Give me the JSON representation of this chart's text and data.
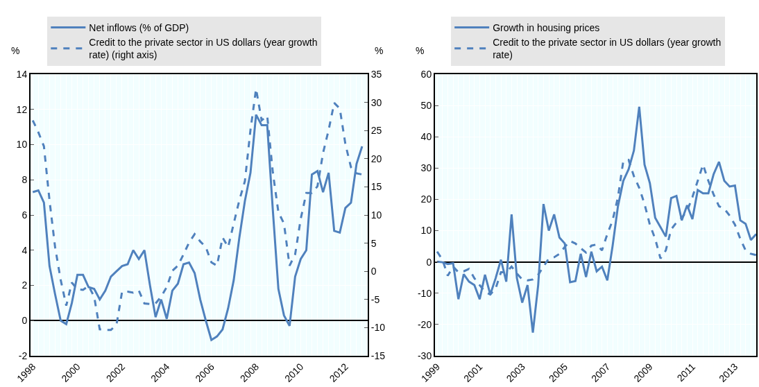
{
  "chart_data": [
    {
      "type": "line",
      "ylabel": "%",
      "y2label": "%",
      "x": [
        1998,
        1998.25,
        1998.5,
        1998.75,
        1999,
        1999.25,
        1999.5,
        1999.75,
        2000,
        2000.25,
        2000.5,
        2000.75,
        2001,
        2001.25,
        2001.5,
        2001.75,
        2002,
        2002.25,
        2002.5,
        2002.75,
        2003,
        2003.25,
        2003.5,
        2003.75,
        2004,
        2004.25,
        2004.5,
        2004.75,
        2005,
        2005.25,
        2005.5,
        2005.75,
        2006,
        2006.25,
        2006.5,
        2006.75,
        2007,
        2007.25,
        2007.5,
        2007.75,
        2008,
        2008.25,
        2008.5,
        2008.75,
        2009,
        2009.25,
        2009.5,
        2009.75,
        2010,
        2010.25,
        2010.5,
        2010.75,
        2011,
        2011.25,
        2011.5,
        2011.75,
        2012,
        2012.25,
        2012.5,
        2012.75
      ],
      "series": [
        {
          "name": "Net inflows (% of GDP)",
          "color": "#4f81bd",
          "line_style": "solid",
          "values": [
            7.3,
            7.4,
            6.7,
            3.1,
            1.5,
            0.0,
            -0.2,
            1.0,
            2.6,
            2.6,
            1.9,
            1.8,
            1.2,
            1.7,
            2.5,
            2.8,
            3.1,
            3.2,
            4.0,
            3.5,
            4.0,
            2.0,
            0.2,
            1.2,
            0.1,
            1.7,
            2.1,
            3.2,
            3.3,
            2.7,
            1.2,
            0.0,
            -1.1,
            -0.9,
            -0.5,
            0.7,
            2.3,
            4.7,
            6.8,
            8.4,
            11.7,
            11.1,
            11.1,
            6.3,
            1.8,
            0.3,
            -0.3,
            2.5,
            3.5,
            4.0,
            8.3,
            8.5,
            7.3,
            8.4,
            5.1,
            5.0,
            6.4,
            6.7,
            8.9,
            9.9
          ]
        },
        {
          "name": "Credit to the private sector in US dollars (year growth rate) (right axis)",
          "color": "#4f81bd",
          "line_style": "dashed",
          "axis": "y2",
          "values": [
            26.8,
            24.7,
            22.2,
            12.6,
            4.3,
            -1.5,
            -6.1,
            -2.0,
            -3.2,
            -3.3,
            -2.6,
            -4.5,
            -10.3,
            -10.4,
            -10.4,
            -9.5,
            -3.6,
            -3.6,
            -3.8,
            -3.4,
            -5.7,
            -5.8,
            -5.7,
            -4.5,
            -2.8,
            0.1,
            1.0,
            3.0,
            5.1,
            6.6,
            5.3,
            4.3,
            1.6,
            1.0,
            6.0,
            4.3,
            8.5,
            12.6,
            16.0,
            25.1,
            32.4,
            26.8,
            27.6,
            17.6,
            10.5,
            8.5,
            1.0,
            3.0,
            9.3,
            13.9,
            13.9,
            15.1,
            21.0,
            25.1,
            29.9,
            28.9,
            22.6,
            18.5,
            17.4,
            17.2
          ]
        }
      ],
      "xlim": [
        1997.9,
        2013.0
      ],
      "xticks": [
        1998,
        2000,
        2002,
        2004,
        2006,
        2008,
        2010,
        2012
      ],
      "ylim": [
        -2,
        14
      ],
      "yticks": [
        -2,
        0,
        2,
        4,
        6,
        8,
        10,
        12,
        14
      ],
      "y2lim": [
        -15,
        35
      ],
      "y2ticks": [
        -15,
        -10,
        -5,
        0,
        5,
        10,
        15,
        20,
        25,
        30,
        35
      ],
      "grid": true,
      "legend": "top"
    },
    {
      "type": "line",
      "ylabel": "%",
      "x": [
        1999,
        1999.25,
        1999.5,
        1999.75,
        2000,
        2000.25,
        2000.5,
        2000.75,
        2001,
        2001.25,
        2001.5,
        2001.75,
        2002,
        2002.25,
        2002.5,
        2002.75,
        2003,
        2003.25,
        2003.5,
        2003.75,
        2004,
        2004.25,
        2004.5,
        2004.75,
        2005,
        2005.25,
        2005.5,
        2005.75,
        2006,
        2006.25,
        2006.5,
        2006.75,
        2007,
        2007.25,
        2007.5,
        2007.75,
        2008,
        2008.25,
        2008.5,
        2008.75,
        2009,
        2009.25,
        2009.5,
        2009.75,
        2010,
        2010.25,
        2010.5,
        2010.75,
        2011,
        2011.25,
        2011.5,
        2011.75,
        2012,
        2012.25,
        2012.5,
        2012.75,
        2013,
        2013.25,
        2013.5,
        2013.75,
        2014
      ],
      "series": [
        {
          "name": "Growth in housing prices",
          "color": "#4f81bd",
          "line_style": "solid",
          "values": [
            0.1,
            -0.1,
            -0.7,
            -0.4,
            -11.9,
            -3.9,
            -6.3,
            -7.4,
            -11.9,
            -4.1,
            -10.4,
            -5.2,
            0.7,
            -6.3,
            15.2,
            -5.2,
            -13.0,
            -7.4,
            -22.6,
            -7.4,
            18.5,
            10.0,
            15.2,
            7.8,
            5.9,
            -6.5,
            -6.1,
            2.6,
            -4.8,
            3.3,
            -3.0,
            -1.5,
            -5.9,
            5.2,
            17.8,
            25.9,
            29.6,
            35.6,
            49.6,
            31.1,
            25.2,
            14.1,
            11.1,
            8.1,
            20.4,
            21.1,
            13.3,
            18.1,
            13.7,
            23.0,
            21.9,
            21.9,
            28.1,
            32.0,
            25.9,
            24.1,
            24.4,
            13.3,
            12.2,
            7.0,
            8.9
          ]
        },
        {
          "name": "Credit to the private sector in US dollars (year growth rate)",
          "color": "#4f81bd",
          "line_style": "dashed",
          "values": [
            3.3,
            0.7,
            -4.4,
            -1.5,
            -3.3,
            -3.0,
            -2.2,
            -5.2,
            -7.4,
            -9.6,
            -10.4,
            -8.5,
            -3.3,
            -3.3,
            -1.5,
            -3.7,
            -5.6,
            -5.9,
            -5.6,
            -4.1,
            -1.5,
            1.1,
            1.5,
            2.6,
            4.8,
            6.7,
            5.9,
            4.4,
            3.0,
            5.2,
            5.6,
            3.7,
            8.9,
            13.3,
            20.7,
            32.2,
            32.6,
            27.4,
            23.7,
            18.5,
            11.9,
            7.4,
            1.1,
            3.7,
            10.4,
            12.6,
            14.1,
            16.3,
            20.7,
            25.9,
            31.1,
            25.9,
            21.5,
            17.8,
            17.0,
            14.8,
            11.9,
            7.4,
            3.7,
            2.6,
            2.2
          ]
        }
      ],
      "xlim": [
        1998.9,
        2014.0
      ],
      "xticks": [
        1999,
        2001,
        2003,
        2005,
        2007,
        2009,
        2011,
        2013
      ],
      "ylim": [
        -30,
        60
      ],
      "yticks": [
        -30,
        -20,
        -10,
        0,
        10,
        20,
        30,
        40,
        50,
        60
      ],
      "grid": true,
      "legend": "top"
    }
  ]
}
